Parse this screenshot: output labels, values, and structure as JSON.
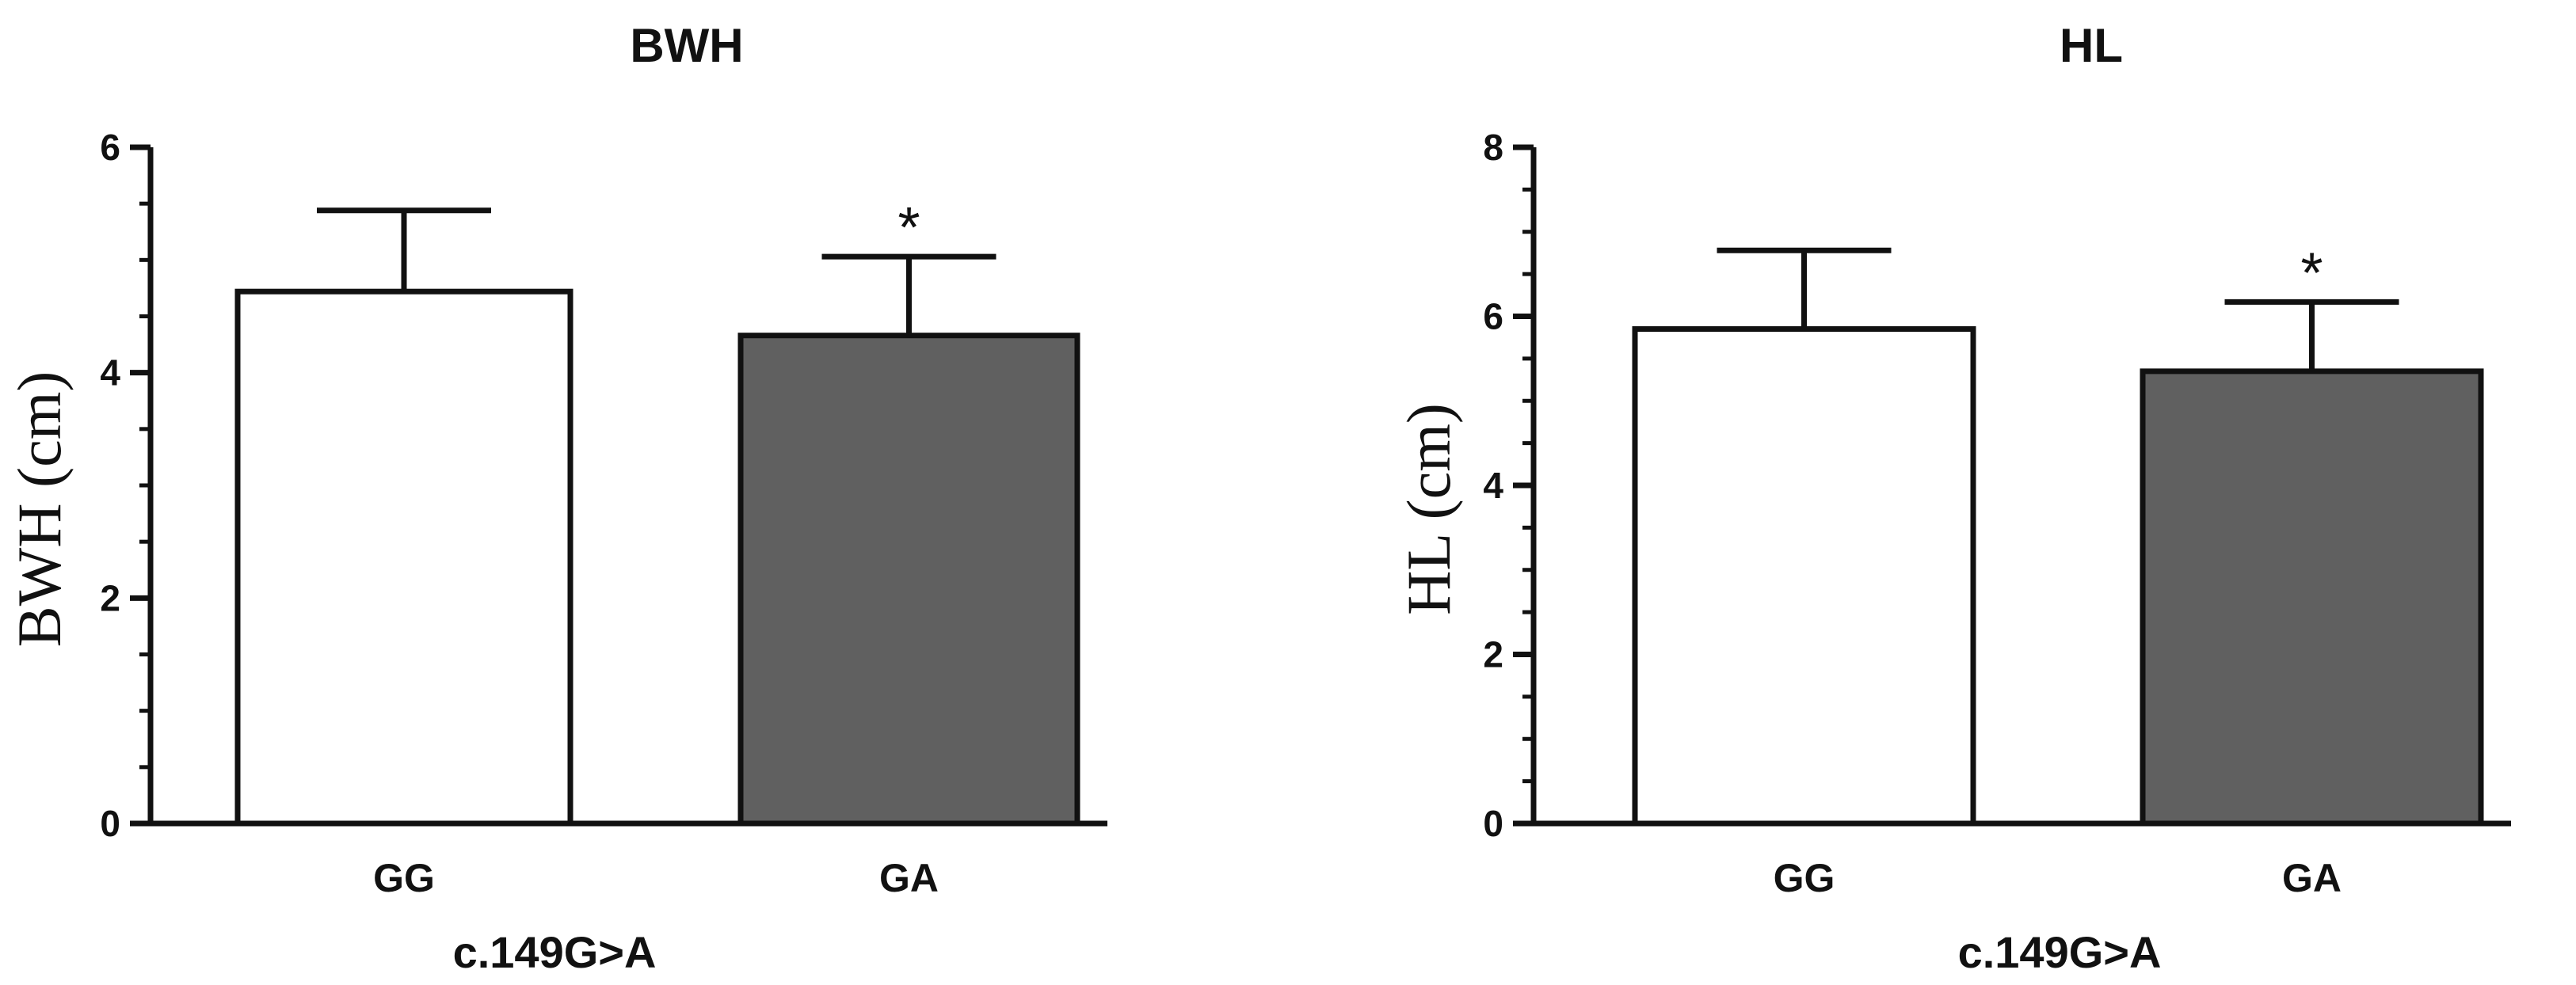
{
  "chart_data": [
    {
      "type": "bar",
      "title": "BWH",
      "ylabel": "BWH (cm)",
      "xlabel": "c.149G>A",
      "categories": [
        "GG",
        "GA"
      ],
      "values": [
        4.72,
        4.33
      ],
      "errors": [
        0.72,
        0.7
      ],
      "annotations": [
        "",
        "*"
      ],
      "bar_colors": [
        "#ffffff",
        "#606060"
      ],
      "ylim": [
        0,
        6
      ],
      "yticks": [
        0,
        2,
        4,
        6
      ],
      "grid": false,
      "legend": "none"
    },
    {
      "type": "bar",
      "title": "HL",
      "ylabel": "HL (cm)",
      "xlabel": "c.149G>A",
      "categories": [
        "GG",
        "GA"
      ],
      "values": [
        5.85,
        5.35
      ],
      "errors": [
        0.93,
        0.82
      ],
      "annotations": [
        "",
        "*"
      ],
      "bar_colors": [
        "#ffffff",
        "#606060"
      ],
      "ylim": [
        0,
        8
      ],
      "yticks": [
        0,
        2,
        4,
        6,
        8
      ],
      "grid": false,
      "legend": "none"
    }
  ]
}
